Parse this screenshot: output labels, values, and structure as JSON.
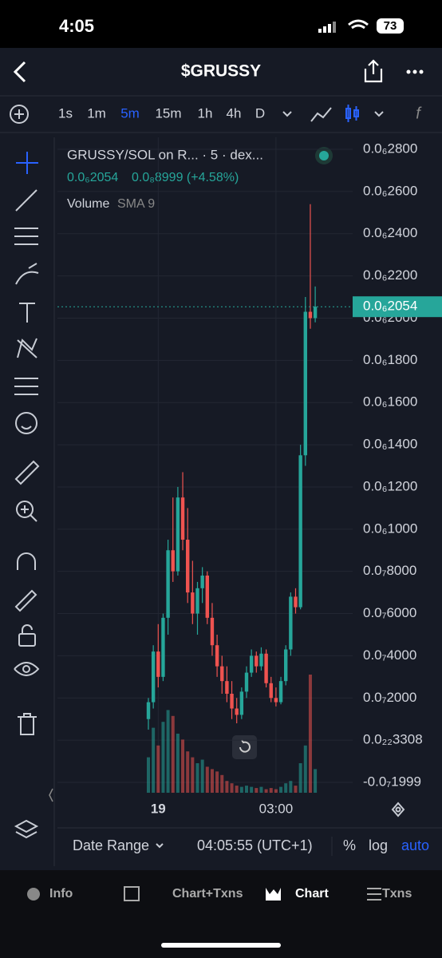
{
  "status_bar": {
    "time": "4:05",
    "battery": "73"
  },
  "header": {
    "title": "$GRUSSY"
  },
  "toolbar": {
    "intervals": [
      "1s",
      "1m",
      "5m",
      "15m",
      "1h",
      "4h",
      "D"
    ]
  },
  "legend": {
    "pair": "GRUSSY/SOL on R... · 5 · dex...",
    "price": "0.0₆2054",
    "change": "0.0₈8999 (+4.58%)",
    "indicator": "Volume",
    "indicator_params": "SMA 9"
  },
  "chart_data": {
    "type": "candlestick",
    "categories": [
      null,
      null,
      "19",
      null,
      null,
      null,
      null,
      null,
      null,
      null,
      null,
      null,
      null,
      null,
      null,
      null,
      null,
      null,
      null,
      null,
      null,
      null,
      null,
      null,
      null,
      null,
      "03:00",
      null,
      null,
      null,
      null,
      null,
      null,
      null,
      null
    ],
    "ohlc": [
      [
        1e-08,
        2e-08,
        5e-09,
        1.8e-08
      ],
      [
        1.8e-08,
        4.5e-08,
        1.5e-08,
        4.2e-08
      ],
      [
        4.2e-08,
        5.5e-08,
        2.5e-08,
        3e-08
      ],
      [
        3e-08,
        6e-08,
        2.8e-08,
        5.8e-08
      ],
      [
        5.8e-08,
        9.5e-08,
        5e-08,
        9e-08
      ],
      [
        9e-08,
        1.15e-07,
        7.5e-08,
        8e-08
      ],
      [
        8e-08,
        1.2e-07,
        7.8e-08,
        1.15e-07
      ],
      [
        1.15e-07,
        1.27e-07,
        9e-08,
        9.5e-08
      ],
      [
        9.5e-08,
        1.1e-07,
        6.5e-08,
        7e-08
      ],
      [
        7e-08,
        8.5e-08,
        5.5e-08,
        6e-08
      ],
      [
        6e-08,
        7.5e-08,
        5e-08,
        7.2e-08
      ],
      [
        7.2e-08,
        8.2e-08,
        6.5e-08,
        7.8e-08
      ],
      [
        7.8e-08,
        8e-08,
        5.5e-08,
        5.8e-08
      ],
      [
        5.8e-08,
        6.5e-08,
        4e-08,
        4.5e-08
      ],
      [
        4.5e-08,
        5e-08,
        3e-08,
        3.5e-08
      ],
      [
        3.5e-08,
        4e-08,
        2.2e-08,
        2.8e-08
      ],
      [
        2.8e-08,
        3.5e-08,
        1.8e-08,
        2.2e-08
      ],
      [
        2.2e-08,
        2.8e-08,
        1e-08,
        1.5e-08
      ],
      [
        1.5e-08,
        2e-08,
        8e-09,
        1.2e-08
      ],
      [
        1.2e-08,
        2.5e-08,
        1e-08,
        2.3e-08
      ],
      [
        2.3e-08,
        3.5e-08,
        2e-08,
        3.2e-08
      ],
      [
        3.2e-08,
        4.3e-08,
        3e-08,
        4e-08
      ],
      [
        4e-08,
        4.2e-08,
        3.2e-08,
        3.5e-08
      ],
      [
        3.5e-08,
        4.4e-08,
        3.3e-08,
        4.1e-08
      ],
      [
        4.1e-08,
        4.3e-08,
        2.5e-08,
        2.7e-08
      ],
      [
        2.7e-08,
        3e-08,
        1.8e-08,
        2e-08
      ],
      [
        2e-08,
        2.5e-08,
        1.6e-08,
        1.8e-08
      ],
      [
        1.8e-08,
        3e-08,
        1.7e-08,
        2.8e-08
      ],
      [
        2.8e-08,
        4.5e-08,
        2.6e-08,
        4.3e-08
      ],
      [
        4.3e-08,
        7e-08,
        4e-08,
        6.8e-08
      ],
      [
        6.8e-08,
        7.2e-08,
        6e-08,
        6.3e-08
      ],
      [
        6.3e-08,
        1.4e-07,
        6.2e-08,
        1.35e-07
      ],
      [
        1.35e-07,
        2.1e-07,
        1.3e-07,
        2.03e-07
      ],
      [
        2.03e-07,
        2.54e-07,
        1.95e-07,
        2e-07
      ],
      [
        2e-07,
        2.15e-07,
        1.98e-07,
        2.054e-07
      ]
    ],
    "volume": [
      30,
      55,
      40,
      60,
      70,
      65,
      50,
      45,
      35,
      30,
      25,
      28,
      22,
      20,
      18,
      15,
      10,
      8,
      6,
      5,
      6,
      5,
      4,
      5,
      3,
      4,
      3,
      5,
      8,
      10,
      6,
      25,
      40,
      100,
      20
    ],
    "up_color": "#26a69a",
    "down_color": "#ef5350",
    "ylim": [
      -1.999e-08,
      2.8e-07
    ],
    "yticks": [
      {
        "value": 2.8e-07,
        "label": "0.0₆2800"
      },
      {
        "value": 2.6e-07,
        "label": "0.0₆2600"
      },
      {
        "value": 2.4e-07,
        "label": "0.0₆2400"
      },
      {
        "value": 2.2e-07,
        "label": "0.0₆2200"
      },
      {
        "value": 2e-07,
        "label": "0.0₆2000"
      },
      {
        "value": 1.8e-07,
        "label": "0.0₆1800"
      },
      {
        "value": 1.6e-07,
        "label": "0.0₆1600"
      },
      {
        "value": 1.4e-07,
        "label": "0.0₆1400"
      },
      {
        "value": 1.2e-07,
        "label": "0.0₆1200"
      },
      {
        "value": 1e-07,
        "label": "0.0₆1000"
      },
      {
        "value": 8e-08,
        "label": "0.0₇8000"
      },
      {
        "value": 6e-08,
        "label": "0.0₇6000"
      },
      {
        "value": 4e-08,
        "label": "0.0₇4000"
      },
      {
        "value": 2e-08,
        "label": "0.0₇2000"
      },
      {
        "value": 3.308e-23,
        "label": "0.0₂₂3308"
      },
      {
        "value": -1.999e-08,
        "label": "-0.0₇1999"
      }
    ],
    "current_price": {
      "value": 2.054e-07,
      "label": "0.0₆2054"
    },
    "grid": true
  },
  "bottom_controls": {
    "date_range": "Date Range",
    "time": "04:05:55 (UTC+1)",
    "percent": "%",
    "log": "log",
    "auto": "auto"
  },
  "tabs": [
    "Info",
    "Chart+Txns",
    "Chart",
    "Txns"
  ]
}
